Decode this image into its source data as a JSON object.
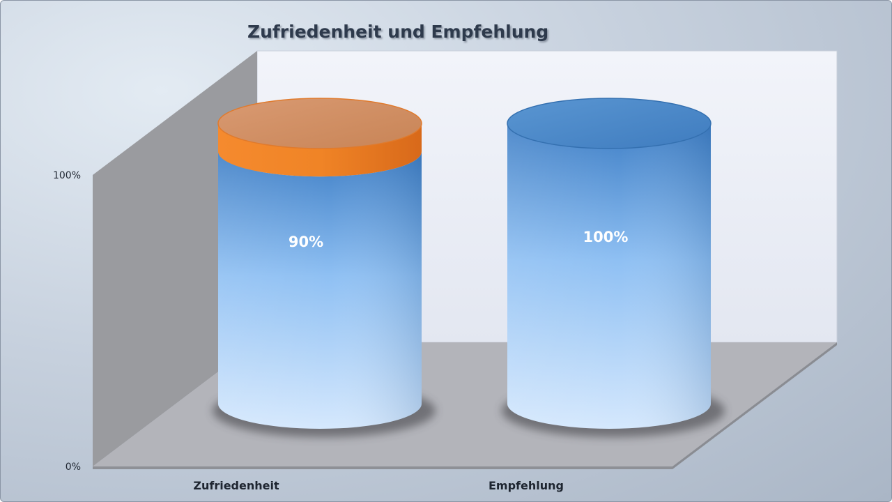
{
  "chart_data": {
    "type": "bar",
    "title": "Zufriedenheit und Empfehlung",
    "categories": [
      "Zufriedenheit",
      "Empfehlung"
    ],
    "series": [
      {
        "values": [
          90,
          100
        ],
        "color": "#5b9bd5",
        "data_labels": [
          "90%",
          "100%"
        ]
      },
      {
        "values": [
          10,
          0
        ],
        "color": "#f07d23"
      }
    ],
    "stacked": true,
    "shape": "cylinder-3d",
    "ylim": [
      0,
      100
    ],
    "yticks": [
      "0%",
      "100%"
    ],
    "xlabel": "",
    "ylabel": "",
    "grid": false,
    "legend": "none"
  }
}
